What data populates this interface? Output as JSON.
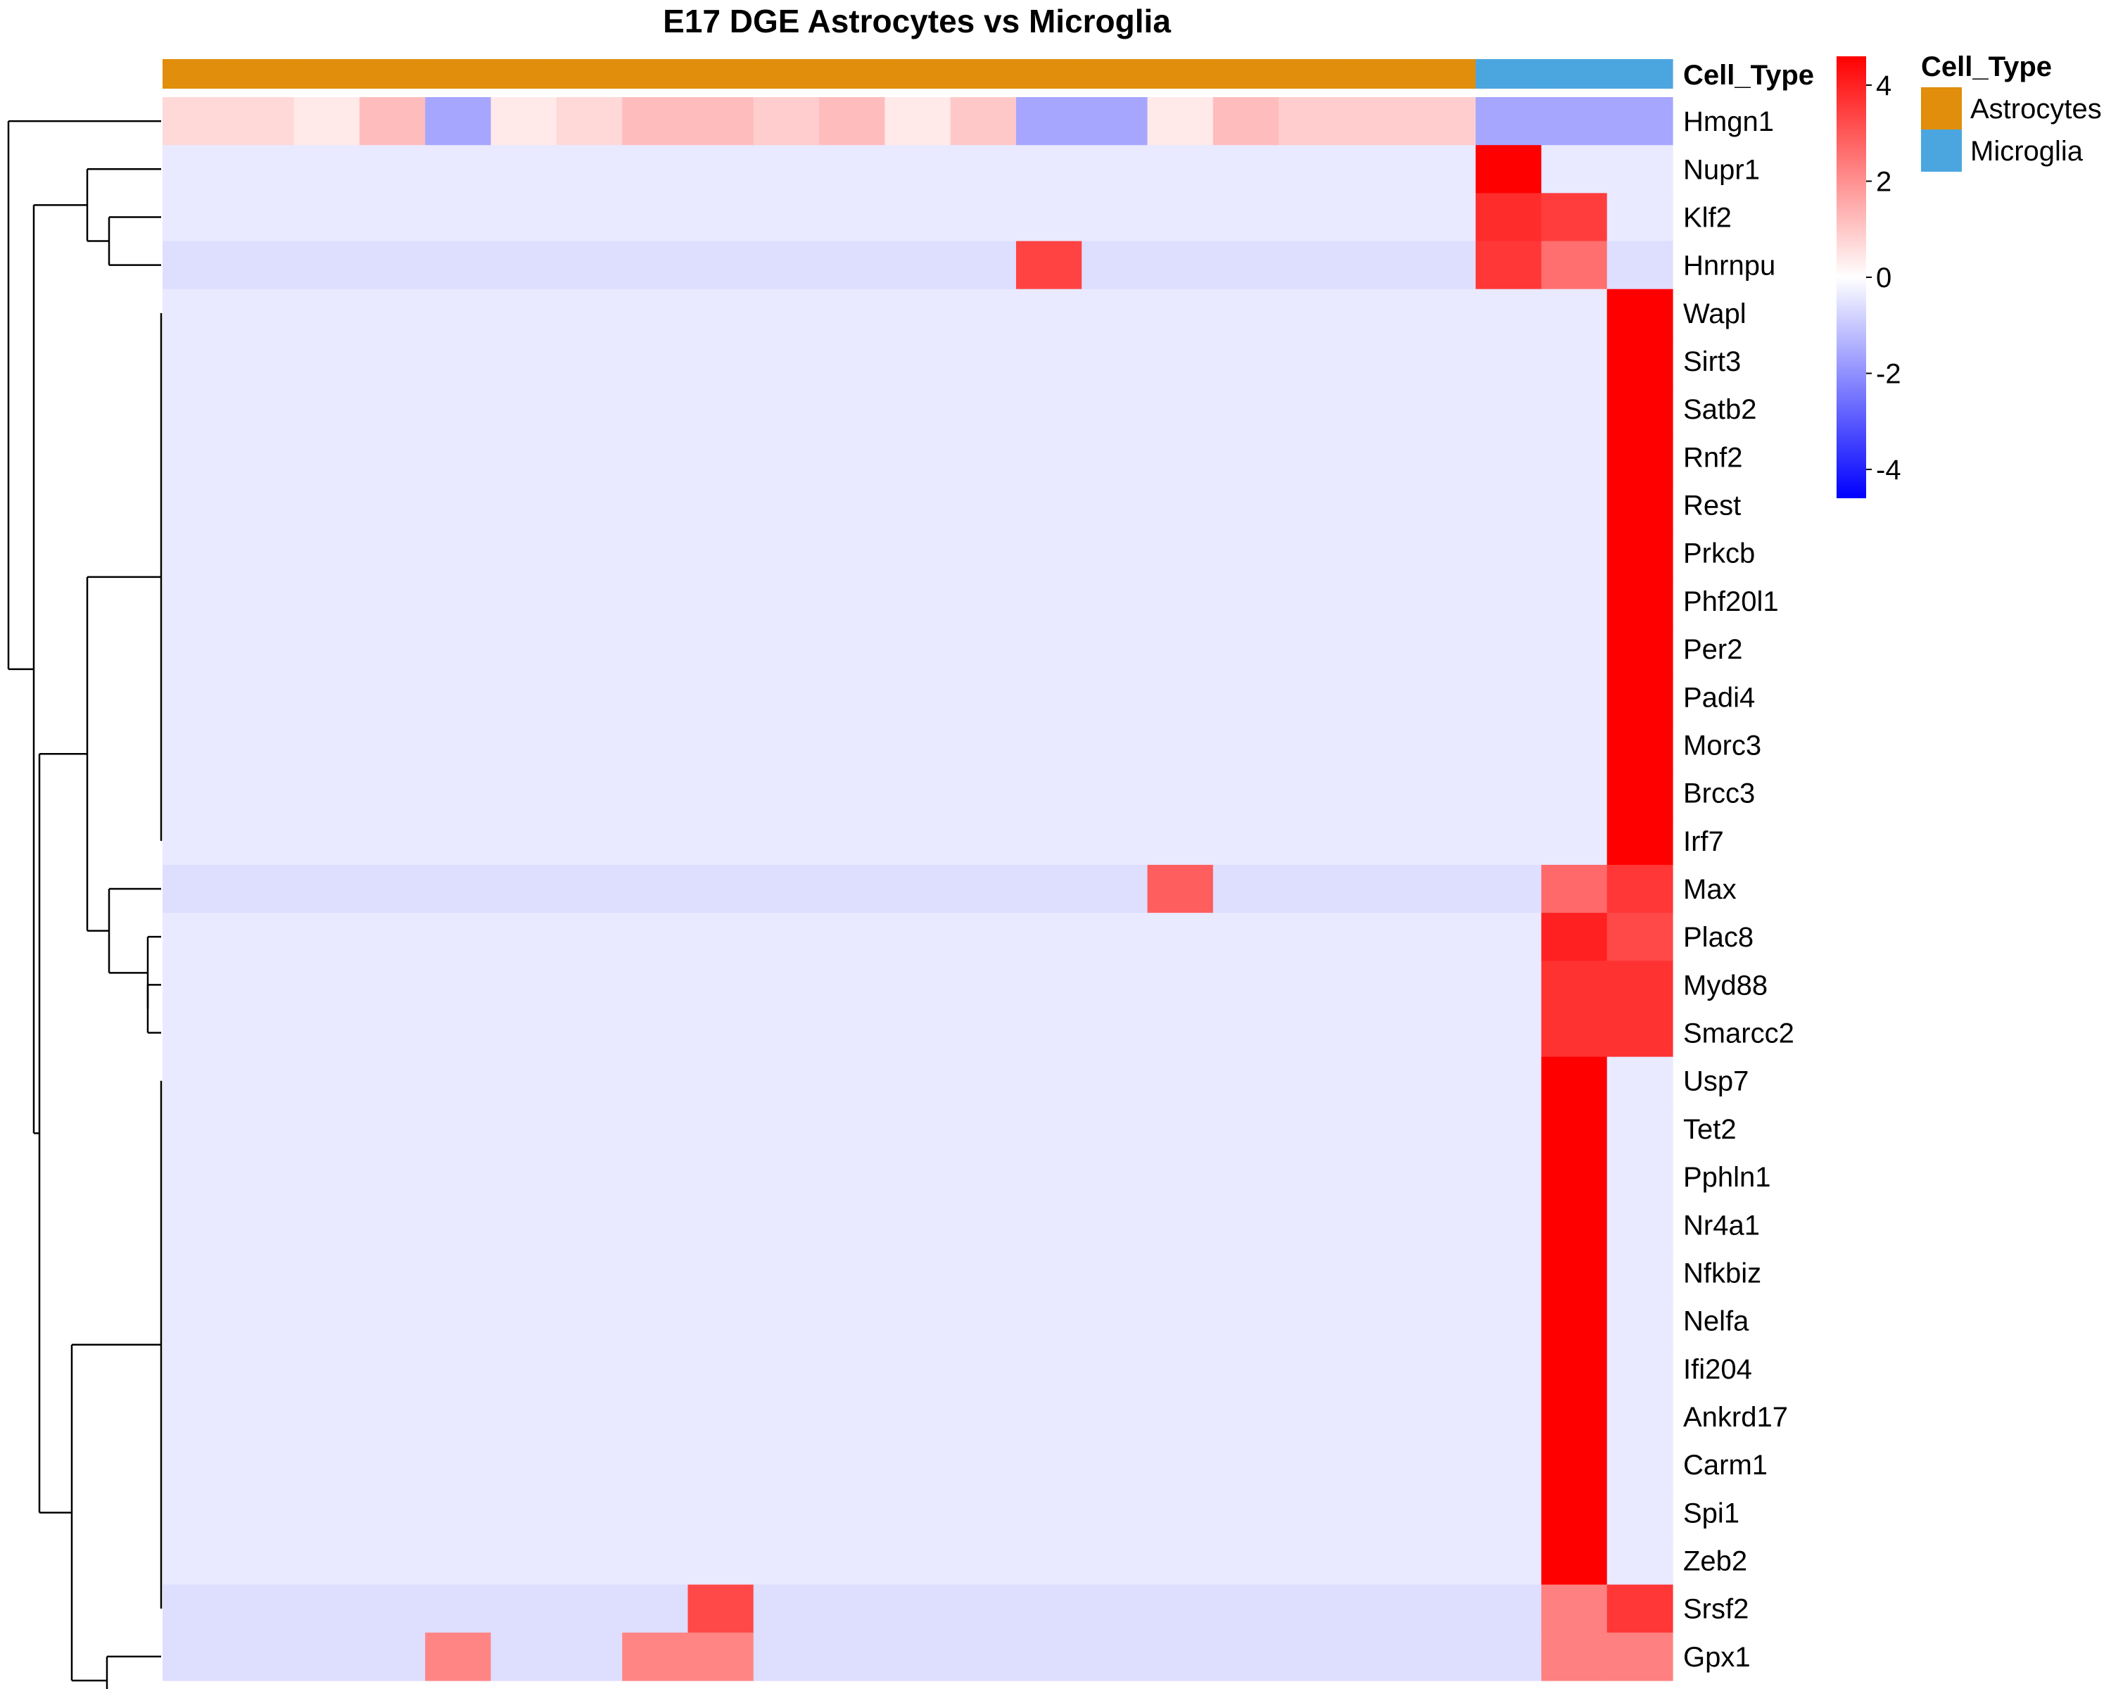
{
  "chart_data": {
    "type": "heatmap",
    "title": "E17 DGE Astrocytes vs Microglia",
    "annotation": {
      "name": "Cell_Type",
      "columns": [
        "Astrocytes",
        "Astrocytes",
        "Astrocytes",
        "Astrocytes",
        "Astrocytes",
        "Astrocytes",
        "Astrocytes",
        "Astrocytes",
        "Astrocytes",
        "Astrocytes",
        "Astrocytes",
        "Astrocytes",
        "Astrocytes",
        "Astrocytes",
        "Astrocytes",
        "Astrocytes",
        "Astrocytes",
        "Astrocytes",
        "Astrocytes",
        "Astrocytes",
        "Microglia",
        "Microglia",
        "Microglia"
      ],
      "legend": [
        {
          "label": "Astrocytes",
          "color": "#E08E0B"
        },
        {
          "label": "Microglia",
          "color": "#4BA6E0"
        }
      ]
    },
    "colorbar": {
      "range": [
        -4.6,
        4.6
      ],
      "ticks": [
        4,
        2,
        0,
        -2,
        -4
      ],
      "tick_labels": [
        "4",
        "2",
        "0",
        "-2",
        "-4"
      ],
      "low_color": "#0000FF",
      "mid_color": "#FFFFFF",
      "high_color": "#FF0000"
    },
    "rows": [
      {
        "gene": "Hmgn1",
        "values": [
          0.7,
          0.7,
          0.4,
          1.2,
          -1.6,
          0.4,
          0.7,
          1.2,
          1.2,
          0.9,
          1.2,
          0.4,
          1.0,
          -1.6,
          -1.6,
          0.4,
          1.2,
          0.9,
          0.9,
          0.9,
          -1.6,
          -1.6,
          -1.6
        ]
      },
      {
        "gene": "Nupr1",
        "values": [
          -0.4,
          -0.4,
          -0.4,
          -0.4,
          -0.4,
          -0.4,
          -0.4,
          -0.4,
          -0.4,
          -0.4,
          -0.4,
          -0.4,
          -0.4,
          -0.4,
          -0.4,
          -0.4,
          -0.4,
          -0.4,
          -0.4,
          -0.4,
          4.6,
          -0.4,
          -0.4
        ]
      },
      {
        "gene": "Klf2",
        "values": [
          -0.4,
          -0.4,
          -0.4,
          -0.4,
          -0.4,
          -0.4,
          -0.4,
          -0.4,
          -0.4,
          -0.4,
          -0.4,
          -0.4,
          -0.4,
          -0.4,
          -0.4,
          -0.4,
          -0.4,
          -0.4,
          -0.4,
          -0.4,
          3.8,
          3.5,
          -0.4
        ]
      },
      {
        "gene": "Hnrnpu",
        "values": [
          -0.6,
          -0.6,
          -0.6,
          -0.6,
          -0.6,
          -0.6,
          -0.6,
          -0.6,
          -0.6,
          -0.6,
          -0.6,
          -0.6,
          -0.6,
          3.4,
          -0.6,
          -0.6,
          -0.6,
          -0.6,
          -0.6,
          -0.6,
          3.6,
          2.6,
          -0.6
        ]
      },
      {
        "gene": "Wapl",
        "values": [
          -0.4,
          -0.4,
          -0.4,
          -0.4,
          -0.4,
          -0.4,
          -0.4,
          -0.4,
          -0.4,
          -0.4,
          -0.4,
          -0.4,
          -0.4,
          -0.4,
          -0.4,
          -0.4,
          -0.4,
          -0.4,
          -0.4,
          -0.4,
          -0.4,
          -0.4,
          4.6
        ]
      },
      {
        "gene": "Sirt3",
        "values": [
          -0.4,
          -0.4,
          -0.4,
          -0.4,
          -0.4,
          -0.4,
          -0.4,
          -0.4,
          -0.4,
          -0.4,
          -0.4,
          -0.4,
          -0.4,
          -0.4,
          -0.4,
          -0.4,
          -0.4,
          -0.4,
          -0.4,
          -0.4,
          -0.4,
          -0.4,
          4.6
        ]
      },
      {
        "gene": "Satb2",
        "values": [
          -0.4,
          -0.4,
          -0.4,
          -0.4,
          -0.4,
          -0.4,
          -0.4,
          -0.4,
          -0.4,
          -0.4,
          -0.4,
          -0.4,
          -0.4,
          -0.4,
          -0.4,
          -0.4,
          -0.4,
          -0.4,
          -0.4,
          -0.4,
          -0.4,
          -0.4,
          4.6
        ]
      },
      {
        "gene": "Rnf2",
        "values": [
          -0.4,
          -0.4,
          -0.4,
          -0.4,
          -0.4,
          -0.4,
          -0.4,
          -0.4,
          -0.4,
          -0.4,
          -0.4,
          -0.4,
          -0.4,
          -0.4,
          -0.4,
          -0.4,
          -0.4,
          -0.4,
          -0.4,
          -0.4,
          -0.4,
          -0.4,
          4.6
        ]
      },
      {
        "gene": "Rest",
        "values": [
          -0.4,
          -0.4,
          -0.4,
          -0.4,
          -0.4,
          -0.4,
          -0.4,
          -0.4,
          -0.4,
          -0.4,
          -0.4,
          -0.4,
          -0.4,
          -0.4,
          -0.4,
          -0.4,
          -0.4,
          -0.4,
          -0.4,
          -0.4,
          -0.4,
          -0.4,
          4.6
        ]
      },
      {
        "gene": "Prkcb",
        "values": [
          -0.4,
          -0.4,
          -0.4,
          -0.4,
          -0.4,
          -0.4,
          -0.4,
          -0.4,
          -0.4,
          -0.4,
          -0.4,
          -0.4,
          -0.4,
          -0.4,
          -0.4,
          -0.4,
          -0.4,
          -0.4,
          -0.4,
          -0.4,
          -0.4,
          -0.4,
          4.6
        ]
      },
      {
        "gene": "Phf20l1",
        "values": [
          -0.4,
          -0.4,
          -0.4,
          -0.4,
          -0.4,
          -0.4,
          -0.4,
          -0.4,
          -0.4,
          -0.4,
          -0.4,
          -0.4,
          -0.4,
          -0.4,
          -0.4,
          -0.4,
          -0.4,
          -0.4,
          -0.4,
          -0.4,
          -0.4,
          -0.4,
          4.6
        ]
      },
      {
        "gene": "Per2",
        "values": [
          -0.4,
          -0.4,
          -0.4,
          -0.4,
          -0.4,
          -0.4,
          -0.4,
          -0.4,
          -0.4,
          -0.4,
          -0.4,
          -0.4,
          -0.4,
          -0.4,
          -0.4,
          -0.4,
          -0.4,
          -0.4,
          -0.4,
          -0.4,
          -0.4,
          -0.4,
          4.6
        ]
      },
      {
        "gene": "Padi4",
        "values": [
          -0.4,
          -0.4,
          -0.4,
          -0.4,
          -0.4,
          -0.4,
          -0.4,
          -0.4,
          -0.4,
          -0.4,
          -0.4,
          -0.4,
          -0.4,
          -0.4,
          -0.4,
          -0.4,
          -0.4,
          -0.4,
          -0.4,
          -0.4,
          -0.4,
          -0.4,
          4.6
        ]
      },
      {
        "gene": "Morc3",
        "values": [
          -0.4,
          -0.4,
          -0.4,
          -0.4,
          -0.4,
          -0.4,
          -0.4,
          -0.4,
          -0.4,
          -0.4,
          -0.4,
          -0.4,
          -0.4,
          -0.4,
          -0.4,
          -0.4,
          -0.4,
          -0.4,
          -0.4,
          -0.4,
          -0.4,
          -0.4,
          4.6
        ]
      },
      {
        "gene": "Brcc3",
        "values": [
          -0.4,
          -0.4,
          -0.4,
          -0.4,
          -0.4,
          -0.4,
          -0.4,
          -0.4,
          -0.4,
          -0.4,
          -0.4,
          -0.4,
          -0.4,
          -0.4,
          -0.4,
          -0.4,
          -0.4,
          -0.4,
          -0.4,
          -0.4,
          -0.4,
          -0.4,
          4.6
        ]
      },
      {
        "gene": "Irf7",
        "values": [
          -0.4,
          -0.4,
          -0.4,
          -0.4,
          -0.4,
          -0.4,
          -0.4,
          -0.4,
          -0.4,
          -0.4,
          -0.4,
          -0.4,
          -0.4,
          -0.4,
          -0.4,
          -0.4,
          -0.4,
          -0.4,
          -0.4,
          -0.4,
          -0.4,
          -0.4,
          4.6
        ]
      },
      {
        "gene": "Max",
        "values": [
          -0.6,
          -0.6,
          -0.6,
          -0.6,
          -0.6,
          -0.6,
          -0.6,
          -0.6,
          -0.6,
          -0.6,
          -0.6,
          -0.6,
          -0.6,
          -0.6,
          -0.6,
          2.9,
          -0.6,
          -0.6,
          -0.6,
          -0.6,
          -0.6,
          2.7,
          3.6
        ]
      },
      {
        "gene": "Plac8",
        "values": [
          -0.4,
          -0.4,
          -0.4,
          -0.4,
          -0.4,
          -0.4,
          -0.4,
          -0.4,
          -0.4,
          -0.4,
          -0.4,
          -0.4,
          -0.4,
          -0.4,
          -0.4,
          -0.4,
          -0.4,
          -0.4,
          -0.4,
          -0.4,
          -0.4,
          4.0,
          3.3
        ]
      },
      {
        "gene": "Myd88",
        "values": [
          -0.4,
          -0.4,
          -0.4,
          -0.4,
          -0.4,
          -0.4,
          -0.4,
          -0.4,
          -0.4,
          -0.4,
          -0.4,
          -0.4,
          -0.4,
          -0.4,
          -0.4,
          -0.4,
          -0.4,
          -0.4,
          -0.4,
          -0.4,
          -0.4,
          3.7,
          3.7
        ]
      },
      {
        "gene": "Smarcc2",
        "values": [
          -0.4,
          -0.4,
          -0.4,
          -0.4,
          -0.4,
          -0.4,
          -0.4,
          -0.4,
          -0.4,
          -0.4,
          -0.4,
          -0.4,
          -0.4,
          -0.4,
          -0.4,
          -0.4,
          -0.4,
          -0.4,
          -0.4,
          -0.4,
          -0.4,
          3.7,
          3.7
        ]
      },
      {
        "gene": "Usp7",
        "values": [
          -0.4,
          -0.4,
          -0.4,
          -0.4,
          -0.4,
          -0.4,
          -0.4,
          -0.4,
          -0.4,
          -0.4,
          -0.4,
          -0.4,
          -0.4,
          -0.4,
          -0.4,
          -0.4,
          -0.4,
          -0.4,
          -0.4,
          -0.4,
          -0.4,
          4.6,
          -0.4
        ]
      },
      {
        "gene": "Tet2",
        "values": [
          -0.4,
          -0.4,
          -0.4,
          -0.4,
          -0.4,
          -0.4,
          -0.4,
          -0.4,
          -0.4,
          -0.4,
          -0.4,
          -0.4,
          -0.4,
          -0.4,
          -0.4,
          -0.4,
          -0.4,
          -0.4,
          -0.4,
          -0.4,
          -0.4,
          4.6,
          -0.4
        ]
      },
      {
        "gene": "Pphln1",
        "values": [
          -0.4,
          -0.4,
          -0.4,
          -0.4,
          -0.4,
          -0.4,
          -0.4,
          -0.4,
          -0.4,
          -0.4,
          -0.4,
          -0.4,
          -0.4,
          -0.4,
          -0.4,
          -0.4,
          -0.4,
          -0.4,
          -0.4,
          -0.4,
          -0.4,
          4.6,
          -0.4
        ]
      },
      {
        "gene": "Nr4a1",
        "values": [
          -0.4,
          -0.4,
          -0.4,
          -0.4,
          -0.4,
          -0.4,
          -0.4,
          -0.4,
          -0.4,
          -0.4,
          -0.4,
          -0.4,
          -0.4,
          -0.4,
          -0.4,
          -0.4,
          -0.4,
          -0.4,
          -0.4,
          -0.4,
          -0.4,
          4.6,
          -0.4
        ]
      },
      {
        "gene": "Nfkbiz",
        "values": [
          -0.4,
          -0.4,
          -0.4,
          -0.4,
          -0.4,
          -0.4,
          -0.4,
          -0.4,
          -0.4,
          -0.4,
          -0.4,
          -0.4,
          -0.4,
          -0.4,
          -0.4,
          -0.4,
          -0.4,
          -0.4,
          -0.4,
          -0.4,
          -0.4,
          4.6,
          -0.4
        ]
      },
      {
        "gene": "Nelfa",
        "values": [
          -0.4,
          -0.4,
          -0.4,
          -0.4,
          -0.4,
          -0.4,
          -0.4,
          -0.4,
          -0.4,
          -0.4,
          -0.4,
          -0.4,
          -0.4,
          -0.4,
          -0.4,
          -0.4,
          -0.4,
          -0.4,
          -0.4,
          -0.4,
          -0.4,
          4.6,
          -0.4
        ]
      },
      {
        "gene": "Ifi204",
        "values": [
          -0.4,
          -0.4,
          -0.4,
          -0.4,
          -0.4,
          -0.4,
          -0.4,
          -0.4,
          -0.4,
          -0.4,
          -0.4,
          -0.4,
          -0.4,
          -0.4,
          -0.4,
          -0.4,
          -0.4,
          -0.4,
          -0.4,
          -0.4,
          -0.4,
          4.6,
          -0.4
        ]
      },
      {
        "gene": "Ankrd17",
        "values": [
          -0.4,
          -0.4,
          -0.4,
          -0.4,
          -0.4,
          -0.4,
          -0.4,
          -0.4,
          -0.4,
          -0.4,
          -0.4,
          -0.4,
          -0.4,
          -0.4,
          -0.4,
          -0.4,
          -0.4,
          -0.4,
          -0.4,
          -0.4,
          -0.4,
          4.6,
          -0.4
        ]
      },
      {
        "gene": "Carm1",
        "values": [
          -0.4,
          -0.4,
          -0.4,
          -0.4,
          -0.4,
          -0.4,
          -0.4,
          -0.4,
          -0.4,
          -0.4,
          -0.4,
          -0.4,
          -0.4,
          -0.4,
          -0.4,
          -0.4,
          -0.4,
          -0.4,
          -0.4,
          -0.4,
          -0.4,
          4.6,
          -0.4
        ]
      },
      {
        "gene": "Spi1",
        "values": [
          -0.4,
          -0.4,
          -0.4,
          -0.4,
          -0.4,
          -0.4,
          -0.4,
          -0.4,
          -0.4,
          -0.4,
          -0.4,
          -0.4,
          -0.4,
          -0.4,
          -0.4,
          -0.4,
          -0.4,
          -0.4,
          -0.4,
          -0.4,
          -0.4,
          4.6,
          -0.4
        ]
      },
      {
        "gene": "Zeb2",
        "values": [
          -0.4,
          -0.4,
          -0.4,
          -0.4,
          -0.4,
          -0.4,
          -0.4,
          -0.4,
          -0.4,
          -0.4,
          -0.4,
          -0.4,
          -0.4,
          -0.4,
          -0.4,
          -0.4,
          -0.4,
          -0.4,
          -0.4,
          -0.4,
          -0.4,
          4.6,
          -0.4
        ]
      },
      {
        "gene": "Srsf2",
        "values": [
          -0.6,
          -0.6,
          -0.6,
          -0.6,
          -0.6,
          -0.6,
          -0.6,
          -0.6,
          3.3,
          -0.6,
          -0.6,
          -0.6,
          -0.6,
          -0.6,
          -0.6,
          -0.6,
          -0.6,
          -0.6,
          -0.6,
          -0.6,
          -0.6,
          2.3,
          3.6
        ]
      },
      {
        "gene": "Gpx1",
        "values": [
          -0.6,
          -0.6,
          -0.6,
          -0.6,
          2.2,
          -0.6,
          -0.6,
          2.2,
          2.2,
          -0.6,
          -0.6,
          -0.6,
          -0.6,
          -0.6,
          -0.6,
          -0.6,
          -0.6,
          -0.6,
          -0.6,
          -0.6,
          -0.6,
          2.3,
          2.3
        ]
      }
    ],
    "dendrogram": [
      [
        0,
        1.0
      ],
      [
        [
          1,
          2
        ],
        0.0
      ],
      [
        [
          5,
          6
        ],
        0.0
      ],
      [
        [
          7,
          8
        ],
        0.0
      ],
      [
        [
          9,
          10
        ],
        0.0
      ],
      [
        [
          11,
          12
        ],
        0.0
      ],
      [
        [
          13,
          14
        ],
        0.0
      ],
      [
        [
          15,
          16
        ],
        0.0
      ],
      [
        [
          17,
          18
        ],
        0.0
      ],
      [
        [
          19,
          20
        ],
        0.0
      ],
      [
        [
          21,
          22
        ],
        0.0
      ],
      [
        [
          23,
          24
        ],
        0.0
      ],
      [
        [
          25,
          26
        ],
        0.0
      ],
      [
        [
          27,
          28
        ],
        0.0
      ],
      [
        [
          29,
          30
        ],
        0.0
      ],
      [
        [
          31,
          32
        ],
        0.0
      ]
    ]
  }
}
